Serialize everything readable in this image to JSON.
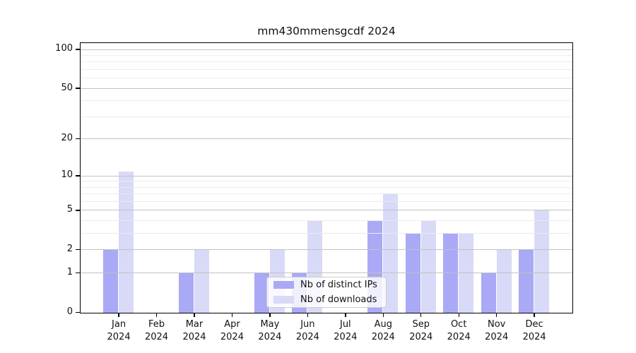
{
  "figure": {
    "background": "#ffffff",
    "spine_color": "#000000",
    "grid_major_color": "#c2c2c2",
    "grid_minor_color": "#ececec"
  },
  "chart_data": {
    "type": "bar",
    "title": "mm430mmensgcdf 2024",
    "categories": [
      "Jan 2024",
      "Feb 2024",
      "Mar 2024",
      "Apr 2024",
      "May 2024",
      "Jun 2024",
      "Jul 2024",
      "Aug 2024",
      "Sep 2024",
      "Oct 2024",
      "Nov 2024",
      "Dec 2024"
    ],
    "series": [
      {
        "name": "Nb of distinct IPs",
        "color": "#a9a9f5",
        "values": [
          2,
          0,
          1,
          0,
          1,
          1,
          0,
          4,
          3,
          3,
          1,
          2
        ]
      },
      {
        "name": "Nb of downloads",
        "color": "#d9d9f8",
        "values": [
          11,
          0,
          2,
          0,
          2,
          4,
          0,
          7,
          4,
          3,
          2,
          5
        ]
      }
    ],
    "xlabel": "",
    "ylabel": "",
    "yscale": "log1p",
    "ylim": [
      0,
      113
    ],
    "yticks_major": [
      0,
      1,
      2,
      5,
      10,
      20,
      50,
      100
    ],
    "yticks_minor": [
      3,
      4,
      6,
      7,
      8,
      9,
      30,
      40,
      60,
      70,
      80,
      90
    ],
    "grid": "horizontal",
    "legend_position": "lower center"
  }
}
